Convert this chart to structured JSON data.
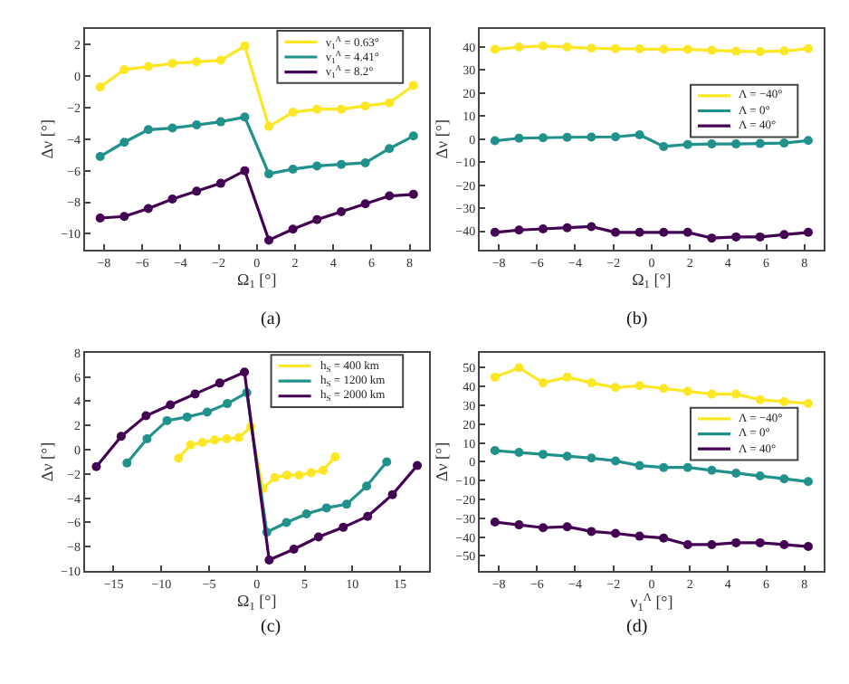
{
  "chart_data": [
    {
      "type": "line",
      "marker": "circle",
      "xlabel": "Ω$_{1}$ [°]",
      "ylabel": "Δν [°]",
      "annotations": [
        "(a)"
      ],
      "legend": "top right",
      "x": [
        -8.2,
        -6.94,
        -5.68,
        -4.42,
        -3.15,
        -1.89,
        -0.63,
        0.63,
        1.89,
        3.15,
        4.42,
        5.68,
        6.94,
        8.2
      ],
      "xlim": [
        -9,
        9
      ],
      "xticks": [
        -8,
        -6,
        -4,
        -2,
        0,
        2,
        4,
        6,
        8
      ],
      "ylim": [
        -11,
        3
      ],
      "yticks": [
        -10,
        -8,
        -6,
        -4,
        -2,
        0,
        2
      ],
      "series": [
        {
          "name": "ν$_{1}$$^{Λ}$ = 0.63°",
          "color": "#fde725",
          "values": [
            -0.7,
            0.4,
            0.6,
            0.8,
            0.9,
            1.0,
            1.9,
            -3.2,
            -2.3,
            -2.1,
            -2.1,
            -1.9,
            -1.7,
            -0.6
          ]
        },
        {
          "name": "ν$_{1}$$^{Λ}$ = 4.41°",
          "color": "#21918c",
          "values": [
            -5.1,
            -4.2,
            -3.4,
            -3.3,
            -3.1,
            -2.9,
            -2.6,
            -6.2,
            -5.9,
            -5.7,
            -5.6,
            -5.5,
            -4.6,
            -3.8
          ]
        },
        {
          "name": "ν$_{1}$$^{Λ}$ = 8.2°",
          "color": "#440154",
          "values": [
            -9.0,
            -8.9,
            -8.4,
            -7.8,
            -7.3,
            -6.8,
            -6.0,
            -10.4,
            -9.7,
            -9.1,
            -8.6,
            -8.1,
            -7.6,
            -7.5
          ]
        }
      ]
    },
    {
      "type": "line",
      "marker": "circle",
      "xlabel": "Ω$_{1}$ [°]",
      "ylabel": "Δν [°]",
      "annotations": [
        "(b)"
      ],
      "legend": "right",
      "x": [
        -8.2,
        -6.94,
        -5.68,
        -4.42,
        -3.15,
        -1.89,
        -0.63,
        0.63,
        1.89,
        3.15,
        4.42,
        5.68,
        6.94,
        8.2
      ],
      "xlim": [
        -9,
        9
      ],
      "xticks": [
        -8,
        -6,
        -4,
        -2,
        0,
        2,
        4,
        6,
        8
      ],
      "ylim": [
        -48,
        48
      ],
      "yticks": [
        -40,
        -30,
        -20,
        -10,
        0,
        10,
        20,
        30,
        40
      ],
      "series": [
        {
          "name": "Λ = −40°",
          "color": "#fde725",
          "values": [
            39,
            40,
            40.5,
            40,
            39.5,
            39.3,
            39.2,
            39,
            39,
            38.6,
            38.2,
            38,
            38.3,
            39.3
          ]
        },
        {
          "name": "Λ = 0°",
          "color": "#21918c",
          "values": [
            -0.7,
            0.4,
            0.6,
            0.8,
            0.9,
            1.0,
            1.9,
            -3.2,
            -2.3,
            -2.1,
            -2.1,
            -1.9,
            -1.7,
            -0.6
          ]
        },
        {
          "name": "Λ = 40°",
          "color": "#440154",
          "values": [
            -40.5,
            -39.5,
            -39,
            -38.5,
            -38,
            -40.5,
            -40.5,
            -40.5,
            -40.5,
            -43,
            -42.5,
            -42.5,
            -41.5,
            -40.5
          ]
        }
      ]
    },
    {
      "type": "line",
      "marker": "circle",
      "xlabel": "Ω$_{1}$ [°]",
      "ylabel": "Δν [°]",
      "annotations": [
        "(c)"
      ],
      "legend": "top right",
      "xlim": [
        -18,
        18
      ],
      "xticks": [
        -15,
        -10,
        -5,
        0,
        5,
        10,
        15
      ],
      "ylim": [
        -10,
        8
      ],
      "yticks": [
        -10,
        -8,
        -6,
        -4,
        -2,
        0,
        2,
        4,
        6,
        8
      ],
      "series": [
        {
          "name": "h$_{S}$ = 400 km",
          "color": "#fde725",
          "x": [
            -8.2,
            -6.94,
            -5.68,
            -4.42,
            -3.15,
            -1.89,
            -0.63,
            0.63,
            1.89,
            3.15,
            4.42,
            5.68,
            6.94,
            8.2
          ],
          "values": [
            -0.7,
            0.4,
            0.6,
            0.8,
            0.9,
            1.0,
            1.9,
            -3.2,
            -2.3,
            -2.1,
            -2.1,
            -1.9,
            -1.7,
            -0.6
          ]
        },
        {
          "name": "h$_{S}$ = 1200 km",
          "color": "#21918c",
          "x": [
            -13.6,
            -11.5,
            -9.4,
            -7.3,
            -5.2,
            -3.1,
            -1.05,
            1.05,
            3.1,
            5.2,
            7.3,
            9.4,
            11.5,
            13.6
          ],
          "values": [
            -1.1,
            0.9,
            2.4,
            2.7,
            3.1,
            3.8,
            4.7,
            -6.8,
            -6.0,
            -5.3,
            -4.8,
            -4.5,
            -3.0,
            -1.0
          ]
        },
        {
          "name": "h$_{S}$ = 2000 km",
          "color": "#440154",
          "x": [
            -16.8,
            -14.2,
            -11.6,
            -9.05,
            -6.46,
            -3.88,
            -1.29,
            1.29,
            3.88,
            6.46,
            9.05,
            11.6,
            14.2,
            16.8
          ],
          "values": [
            -1.4,
            1.1,
            2.8,
            3.7,
            4.6,
            5.5,
            6.4,
            -9.1,
            -8.2,
            -7.2,
            -6.4,
            -5.5,
            -3.7,
            -1.3
          ]
        }
      ]
    },
    {
      "type": "line",
      "marker": "circle",
      "xlabel": "ν$_{1}$$^{Λ}$ [°]",
      "ylabel": "Δν [°]",
      "annotations": [
        "(d)"
      ],
      "legend": "right",
      "x": [
        -8.2,
        -6.94,
        -5.68,
        -4.42,
        -3.15,
        -1.89,
        -0.63,
        0.63,
        1.89,
        3.15,
        4.42,
        5.68,
        6.94,
        8.2
      ],
      "xlim": [
        -9,
        9
      ],
      "xticks": [
        -8,
        -6,
        -4,
        -2,
        0,
        2,
        4,
        6,
        8
      ],
      "ylim": [
        -58,
        58
      ],
      "yticks": [
        -50,
        -40,
        -30,
        -20,
        -10,
        0,
        10,
        20,
        30,
        40,
        50
      ],
      "series": [
        {
          "name": "Λ = −40°",
          "color": "#fde725",
          "values": [
            45,
            50,
            42,
            45,
            42,
            39.5,
            40.5,
            39,
            37.5,
            36,
            36,
            33,
            32,
            31
          ]
        },
        {
          "name": "Λ = 0°",
          "color": "#21918c",
          "values": [
            6,
            5,
            4,
            3,
            2,
            0.5,
            -2,
            -3,
            -3,
            -4.5,
            -6,
            -7.5,
            -9,
            -10.5
          ]
        },
        {
          "name": "Λ = 40°",
          "color": "#440154",
          "values": [
            -32,
            -33.5,
            -35,
            -34.5,
            -37,
            -38,
            -39.5,
            -40.5,
            -44,
            -44,
            -43,
            -43,
            -44,
            -45
          ]
        }
      ]
    }
  ]
}
